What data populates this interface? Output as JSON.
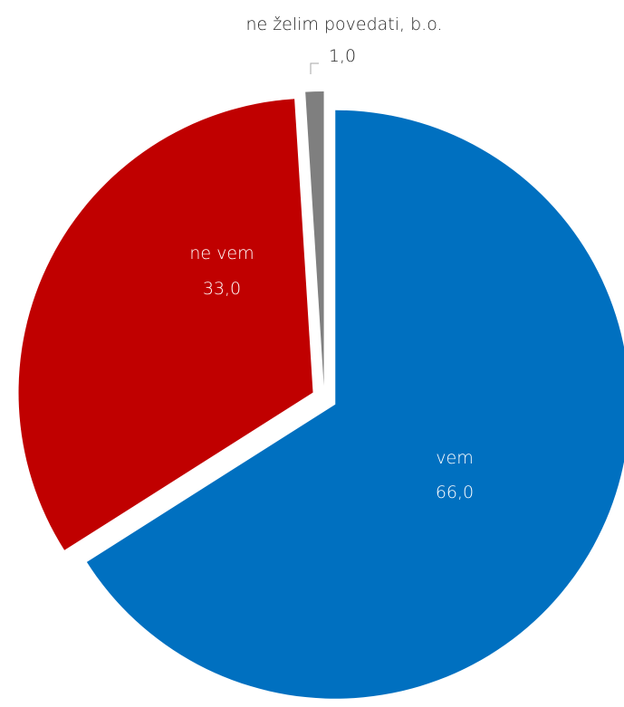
{
  "chart_data": {
    "type": "pie",
    "title": "",
    "slices": [
      {
        "label": "vem",
        "value_label": "66,0",
        "value": 66.0,
        "color": "#0070C0"
      },
      {
        "label": "ne vem",
        "value_label": "33,0",
        "value": 33.0,
        "color": "#C00000"
      },
      {
        "label": "ne želim povedati, b.o.",
        "value_label": "1,0",
        "value": 1.0,
        "color": "#7F7F7F"
      }
    ],
    "label_colors": {
      "inside": "#FFFFFF",
      "outside": "#262626"
    },
    "leader_line_color": "#A6A6A6",
    "exploded": true
  }
}
